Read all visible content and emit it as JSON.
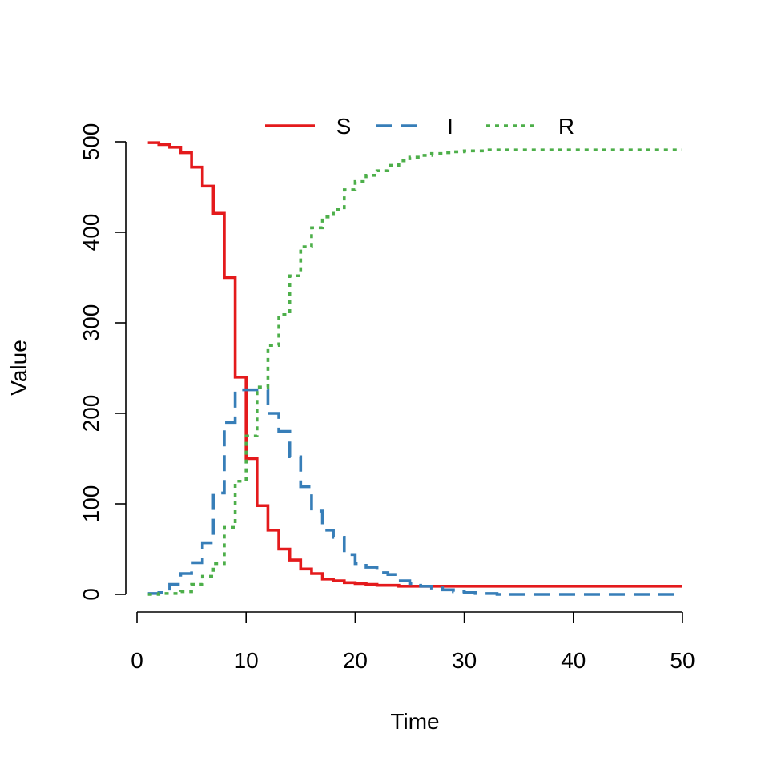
{
  "chart_data": {
    "type": "line",
    "title": "",
    "xlabel": "Time",
    "ylabel": "Value",
    "xlim": [
      0,
      50
    ],
    "ylim": [
      0,
      500
    ],
    "xticks": [
      0,
      10,
      20,
      30,
      40,
      50
    ],
    "yticks": [
      0,
      100,
      200,
      300,
      400,
      500
    ],
    "grid": false,
    "legend_position": "top-center",
    "step": true,
    "x": [
      1,
      2,
      3,
      4,
      5,
      6,
      7,
      8,
      9,
      10,
      11,
      12,
      13,
      14,
      15,
      16,
      17,
      18,
      19,
      20,
      21,
      22,
      23,
      24,
      25,
      26,
      27,
      28,
      29,
      30,
      31,
      32,
      33,
      34,
      35,
      36,
      37,
      38,
      39,
      40,
      41,
      42,
      43,
      44,
      45,
      46,
      47,
      48,
      49,
      50
    ],
    "series": [
      {
        "name": "S",
        "color": "#e41a1c",
        "dash": "solid",
        "values": [
          499,
          497,
          494,
          488,
          472,
          451,
          421,
          350,
          240,
          150,
          98,
          71,
          50,
          38,
          28,
          23,
          17,
          15,
          13,
          12,
          11,
          10,
          10,
          9,
          9,
          9,
          9,
          9,
          9,
          9,
          9,
          9,
          9,
          9,
          9,
          9,
          9,
          9,
          9,
          9,
          9,
          9,
          9,
          9,
          9,
          9,
          9,
          9,
          9,
          9
        ]
      },
      {
        "name": "I",
        "color": "#377eb8",
        "dash": "dashed",
        "values": [
          1,
          2,
          11,
          23,
          35,
          57,
          112,
          190,
          226,
          226,
          226,
          200,
          180,
          152,
          119,
          92,
          71,
          63,
          44,
          34,
          30,
          24,
          22,
          15,
          12,
          9,
          7,
          5,
          3,
          2,
          1,
          1,
          0,
          0,
          0,
          0,
          0,
          0,
          0,
          0,
          0,
          0,
          0,
          0,
          0,
          0,
          0,
          0,
          0,
          0
        ]
      },
      {
        "name": "R",
        "color": "#4daf4a",
        "dash": "dotted",
        "values": [
          0,
          1,
          1,
          3,
          11,
          20,
          34,
          74,
          125,
          175,
          229,
          275,
          309,
          352,
          384,
          405,
          417,
          425,
          447,
          456,
          463,
          468,
          474,
          479,
          483,
          485,
          487,
          488,
          489,
          490,
          490,
          491,
          491,
          491,
          491,
          491,
          491,
          491,
          491,
          491,
          491,
          491,
          491,
          491,
          491,
          491,
          491,
          491,
          491,
          491
        ]
      }
    ]
  }
}
